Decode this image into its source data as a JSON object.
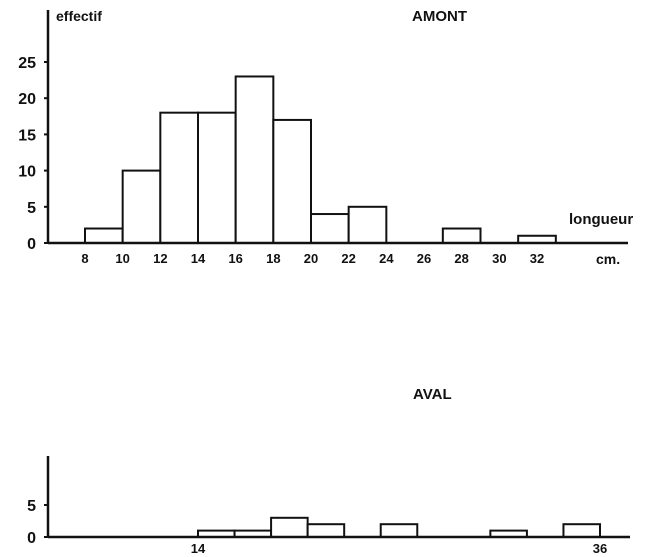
{
  "chart_data": [
    {
      "type": "bar",
      "title": "AMONT",
      "ylabel": "effectif",
      "xlabel": "longueur",
      "xunit": "cm.",
      "ylim": [
        0,
        28
      ],
      "yticks": [
        0,
        5,
        10,
        15,
        20,
        25
      ],
      "xticks": [
        8,
        10,
        12,
        14,
        16,
        18,
        20,
        22,
        24,
        26,
        28,
        30,
        32
      ],
      "bins": [
        {
          "from": 8,
          "to": 10,
          "value": 2
        },
        {
          "from": 10,
          "to": 12,
          "value": 10
        },
        {
          "from": 12,
          "to": 14,
          "value": 18
        },
        {
          "from": 14,
          "to": 16,
          "value": 18
        },
        {
          "from": 16,
          "to": 18,
          "value": 23
        },
        {
          "from": 18,
          "to": 20,
          "value": 17
        },
        {
          "from": 20,
          "to": 22,
          "value": 4
        },
        {
          "from": 22,
          "to": 24,
          "value": 5
        },
        {
          "from": 27,
          "to": 29,
          "value": 2
        },
        {
          "from": 31,
          "to": 33,
          "value": 1
        }
      ]
    },
    {
      "type": "bar",
      "title": "AVAL",
      "ylim": [
        0,
        10
      ],
      "yticks": [
        0,
        5
      ],
      "xticks": [
        14,
        36
      ],
      "bins": [
        {
          "from": 14,
          "to": 16,
          "value": 1
        },
        {
          "from": 16,
          "to": 18,
          "value": 1
        },
        {
          "from": 18,
          "to": 20,
          "value": 3
        },
        {
          "from": 20,
          "to": 22,
          "value": 2
        },
        {
          "from": 24,
          "to": 26,
          "value": 2
        },
        {
          "from": 30,
          "to": 32,
          "value": 1
        },
        {
          "from": 34,
          "to": 36,
          "value": 2
        }
      ]
    }
  ]
}
